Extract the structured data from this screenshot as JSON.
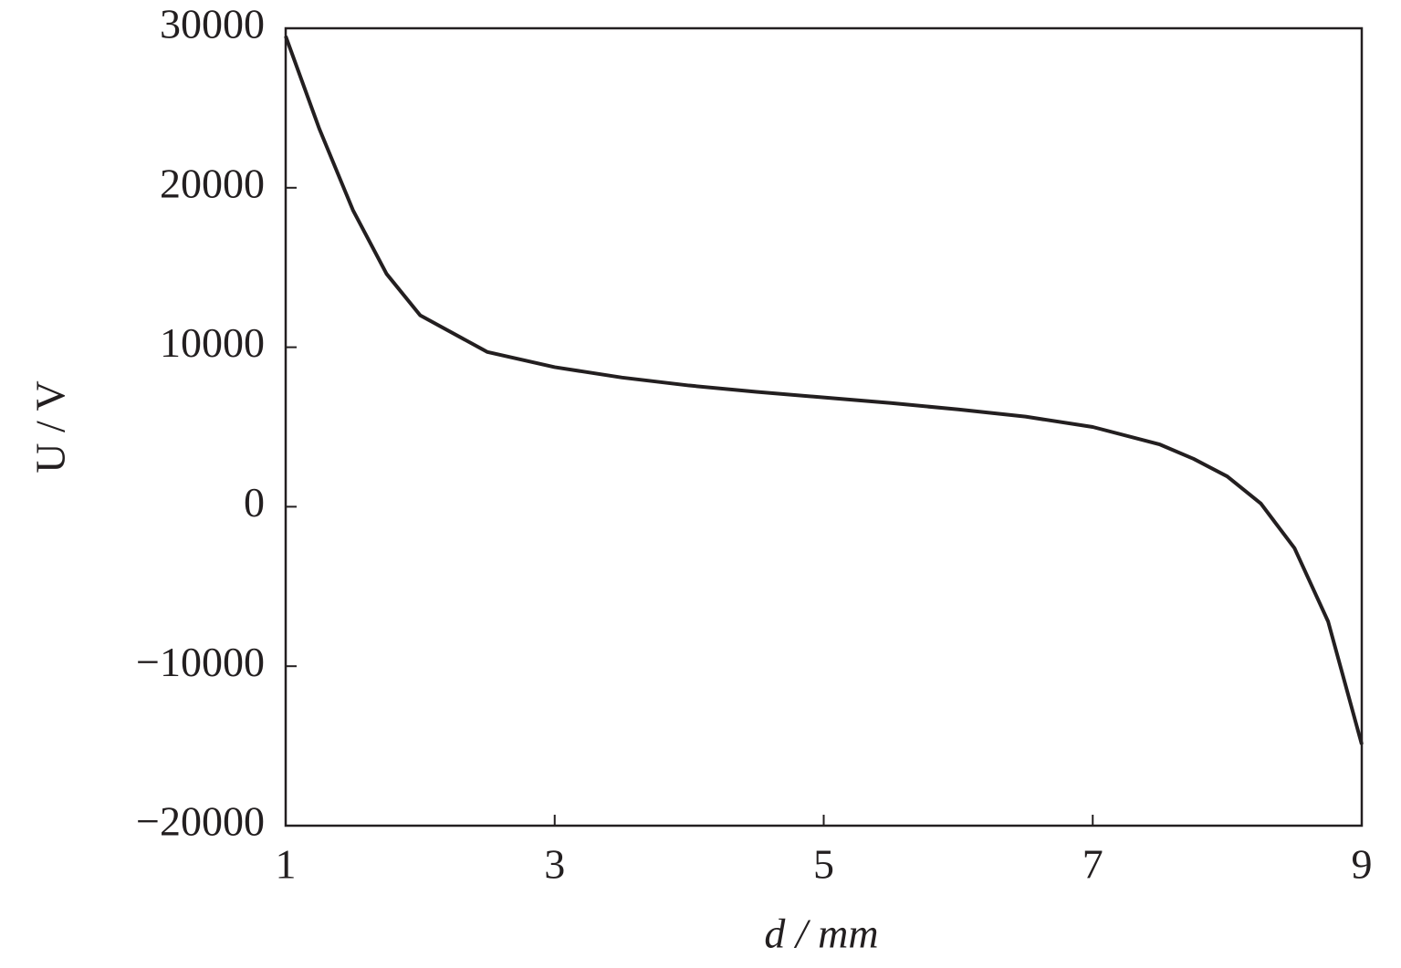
{
  "chart_data": {
    "type": "line",
    "x_label": "d / mm",
    "y_label": "U / V",
    "x": [
      1,
      1.25,
      1.5,
      1.75,
      2,
      2.5,
      3,
      3.5,
      4,
      4.5,
      5,
      5.5,
      6,
      6.5,
      7,
      7.5,
      7.75,
      8,
      8.25,
      8.5,
      8.75,
      9
    ],
    "series": [
      {
        "color": "#231f20",
        "values": [
          29500,
          23700,
          18600,
          14600,
          12000,
          9700,
          8750,
          8100,
          7600,
          7200,
          6850,
          6500,
          6100,
          5650,
          5000,
          3900,
          3000,
          1900,
          200,
          -2600,
          -7200,
          -14900
        ]
      }
    ],
    "xlim": [
      1,
      9
    ],
    "xticks": [
      1,
      3,
      5,
      7,
      9
    ],
    "ylim": [
      -20000,
      30000
    ],
    "yticks": [
      {
        "value": -20000,
        "label": "−20000"
      },
      {
        "value": -10000,
        "label": "−10000"
      },
      0,
      10000,
      20000,
      30000
    ]
  }
}
